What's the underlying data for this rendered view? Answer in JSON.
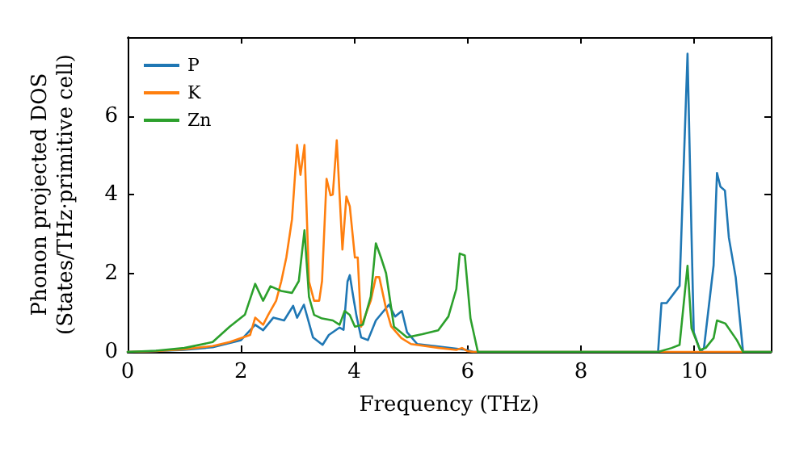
{
  "chart_data": {
    "type": "line",
    "xlabel": "Frequency (THz)",
    "ylabel": "Phonon projected DOS\n(States/THz·primitive cell)",
    "xlim": [
      0,
      11.35
    ],
    "ylim": [
      0,
      8
    ],
    "xticks": [
      0,
      2,
      4,
      6,
      8,
      10
    ],
    "yticks": [
      0,
      2,
      4,
      6
    ],
    "grid": false,
    "legend": "top left",
    "marker": "none",
    "line_style": "solid",
    "series": [
      {
        "name": "P",
        "color": "#1f77b4",
        "x": [
          0,
          0.5,
          1,
          1.5,
          2,
          2.25,
          2.39,
          2.57,
          2.76,
          2.92,
          2.99,
          3.11,
          3.27,
          3.44,
          3.55,
          3.74,
          3.81,
          3.88,
          3.92,
          3.98,
          4.04,
          4.12,
          4.24,
          4.38,
          4.61,
          4.72,
          4.84,
          4.93,
          5.11,
          5.48,
          5.98,
          6.1,
          9.36,
          9.42,
          9.51,
          9.74,
          9.88,
          9.95,
          9.99,
          10.11,
          10.17,
          10.34,
          10.4,
          10.46,
          10.54,
          10.61,
          10.73,
          10.86,
          11.35
        ],
        "values": [
          0,
          0.02,
          0.05,
          0.12,
          0.3,
          0.69,
          0.55,
          0.87,
          0.8,
          1.17,
          0.87,
          1.2,
          0.37,
          0.18,
          0.43,
          0.62,
          0.56,
          1.79,
          1.95,
          1.41,
          0.9,
          0.37,
          0.3,
          0.8,
          1.2,
          0.9,
          1.04,
          0.5,
          0.2,
          0.14,
          0.05,
          0,
          0,
          1.24,
          1.24,
          1.68,
          7.58,
          3.0,
          0.5,
          0,
          0.1,
          2.2,
          4.55,
          4.2,
          4.1,
          2.9,
          1.9,
          0,
          0
        ]
      },
      {
        "name": "K",
        "color": "#ff7f0e",
        "x": [
          0,
          0.5,
          1,
          1.5,
          1.8,
          2.16,
          2.25,
          2.39,
          2.48,
          2.62,
          2.71,
          2.8,
          2.9,
          2.99,
          3.05,
          3.12,
          3.2,
          3.29,
          3.38,
          3.43,
          3.51,
          3.58,
          3.62,
          3.69,
          3.79,
          3.86,
          3.92,
          4.01,
          4.06,
          4.12,
          4.29,
          4.38,
          4.44,
          4.56,
          4.65,
          4.83,
          5.0,
          5.5,
          5.8,
          5.9,
          6.0,
          6.1,
          11.35
        ],
        "values": [
          0,
          0.02,
          0.07,
          0.15,
          0.25,
          0.43,
          0.87,
          0.69,
          0.94,
          1.3,
          1.79,
          2.4,
          3.37,
          5.26,
          4.5,
          5.26,
          1.79,
          1.3,
          1.3,
          1.8,
          4.4,
          3.98,
          4.0,
          5.38,
          2.6,
          3.95,
          3.7,
          2.4,
          2.4,
          0.64,
          1.3,
          1.9,
          1.9,
          1.1,
          0.65,
          0.35,
          0.2,
          0.1,
          0.05,
          0.1,
          0.02,
          0,
          0
        ]
      },
      {
        "name": "Zn",
        "color": "#2ca02c",
        "x": [
          0,
          0.5,
          1,
          1.5,
          1.8,
          2.07,
          2.25,
          2.39,
          2.52,
          2.71,
          2.9,
          3.02,
          3.12,
          3.2,
          3.29,
          3.43,
          3.62,
          3.74,
          3.83,
          3.92,
          4.01,
          4.15,
          4.29,
          4.38,
          4.47,
          4.56,
          4.7,
          4.93,
          5.2,
          5.48,
          5.66,
          5.8,
          5.86,
          5.95,
          6.05,
          6.18,
          9.36,
          9.6,
          9.74,
          9.88,
          9.95,
          10.1,
          10.2,
          10.34,
          10.4,
          10.55,
          10.75,
          10.86,
          11.35
        ],
        "values": [
          0,
          0.03,
          0.1,
          0.25,
          0.64,
          0.95,
          1.73,
          1.3,
          1.67,
          1.55,
          1.5,
          1.8,
          3.09,
          1.4,
          0.94,
          0.85,
          0.8,
          0.69,
          1.04,
          0.94,
          0.64,
          0.69,
          1.41,
          2.76,
          2.4,
          2.0,
          0.64,
          0.37,
          0.45,
          0.55,
          0.9,
          1.6,
          2.5,
          2.45,
          0.85,
          0,
          0,
          0.1,
          0.18,
          2.19,
          0.6,
          0.05,
          0.1,
          0.35,
          0.8,
          0.72,
          0.3,
          0,
          0
        ]
      }
    ]
  }
}
